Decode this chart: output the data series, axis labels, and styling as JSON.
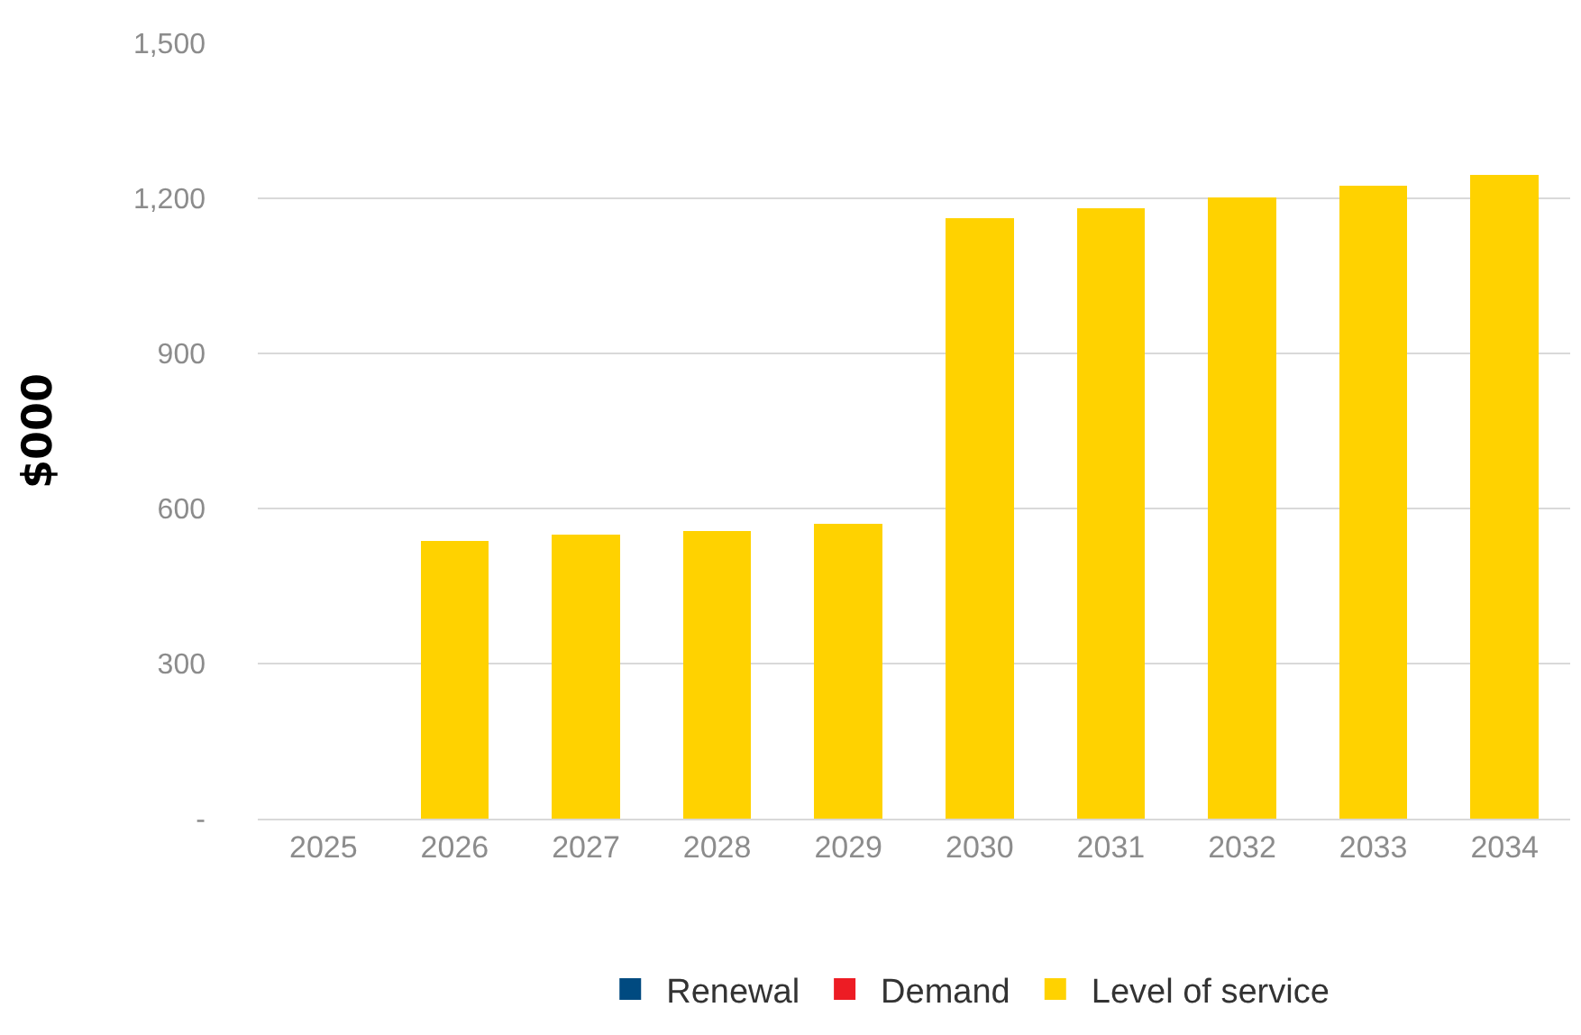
{
  "chart_data": {
    "type": "bar",
    "ylabel": "$000",
    "categories": [
      "2025",
      "2026",
      "2027",
      "2028",
      "2029",
      "2030",
      "2031",
      "2032",
      "2033",
      "2034"
    ],
    "series": [
      {
        "name": "Renewal",
        "color": "#004a80",
        "values": [
          null,
          null,
          null,
          null,
          null,
          null,
          null,
          null,
          null,
          null
        ]
      },
      {
        "name": "Demand",
        "color": "#ed1c24",
        "values": [
          null,
          null,
          null,
          null,
          null,
          null,
          null,
          null,
          null,
          null
        ]
      },
      {
        "name": "Level of service",
        "color": "#ffd200",
        "values": [
          null,
          538,
          549,
          557,
          570,
          1161,
          1180,
          1202,
          1224,
          1245
        ]
      }
    ],
    "stacked": true,
    "ylim": [
      0,
      1500
    ],
    "yticks": [
      {
        "value": 0,
        "label": "-"
      },
      300,
      600,
      900,
      {
        "value": 1200,
        "label": "1,200"
      },
      {
        "value": 1500,
        "label": "1,500"
      }
    ],
    "grid": "y",
    "legend": "bottom"
  }
}
